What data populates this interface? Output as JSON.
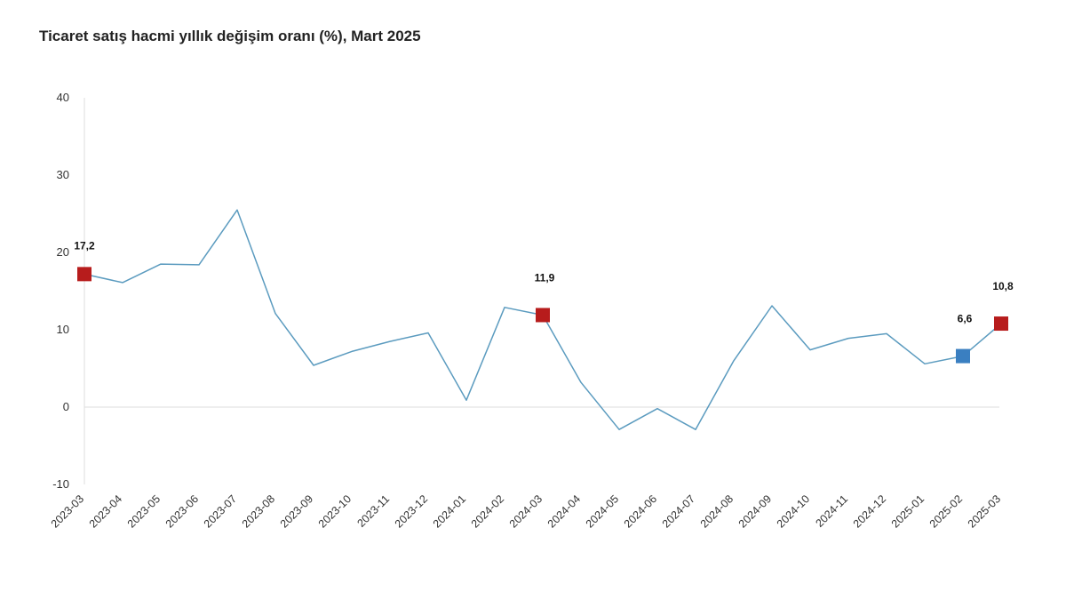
{
  "chart_data": {
    "type": "line",
    "title": "Ticaret satış hacmi yıllık değişim oranı (%), Mart 2025",
    "xlabel": "",
    "ylabel": "",
    "ylim": [
      -10,
      40
    ],
    "yticks": [
      40,
      30,
      20,
      10,
      0,
      -10
    ],
    "grid": false,
    "categories": [
      "2023-03",
      "2023-04",
      "2023-05",
      "2023-06",
      "2023-07",
      "2023-08",
      "2023-09",
      "2023-10",
      "2023-11",
      "2023-12",
      "2024-01",
      "2024-02",
      "2024-03",
      "2024-04",
      "2024-05",
      "2024-06",
      "2024-07",
      "2024-08",
      "2024-09",
      "2024-10",
      "2024-11",
      "2024-12",
      "2025-01",
      "2025-02",
      "2025-03"
    ],
    "series": [
      {
        "name": "Ticaret satış hacmi yıllık değişim oranı (%)",
        "values": [
          17.2,
          16.1,
          18.5,
          18.4,
          25.5,
          12.1,
          5.4,
          7.2,
          8.5,
          9.6,
          0.9,
          12.9,
          11.9,
          3.2,
          -2.9,
          -0.2,
          -2.9,
          6.0,
          13.1,
          7.4,
          8.9,
          9.5,
          5.6,
          6.6,
          10.8
        ]
      }
    ],
    "annotations": [
      {
        "category": "2023-03",
        "value": 17.2,
        "label": "17,2",
        "color": "#b71c1c"
      },
      {
        "category": "2024-03",
        "value": 11.9,
        "label": "11,9",
        "color": "#b71c1c"
      },
      {
        "category": "2025-02",
        "value": 6.6,
        "label": "6,6",
        "color": "#3a7fc1"
      },
      {
        "category": "2025-03",
        "value": 10.8,
        "label": "10,8",
        "color": "#b71c1c"
      }
    ],
    "colors": {
      "line": "#5b9bbf",
      "axis": "#dddddd"
    }
  }
}
